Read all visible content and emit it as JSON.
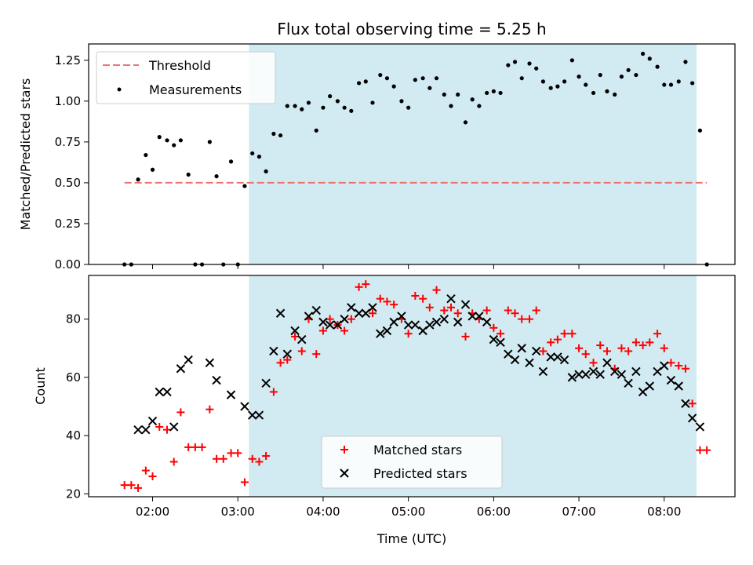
{
  "chart_data": [
    {
      "type": "scatter",
      "title": "Flux total observing time = 5.25 h",
      "xlabel": "",
      "ylabel": "Matched/Predicted stars",
      "ylim": [
        0,
        1.35
      ],
      "yticks": [
        "0.00",
        "0.25",
        "0.50",
        "0.75",
        "1.00",
        "1.25"
      ],
      "ytick_values": [
        0,
        0.25,
        0.5,
        0.75,
        1.0,
        1.25
      ],
      "xlim_hours": [
        1.25,
        8.83
      ],
      "shaded_range_hours": [
        3.13,
        8.38
      ],
      "shade_color": "#add8e6",
      "legend_position": "upper-left",
      "threshold": {
        "name": "Threshold",
        "value": 0.5,
        "x_range_hours": [
          1.67,
          8.5
        ],
        "color": "#f07070"
      },
      "series": [
        {
          "name": "Measurements",
          "color": "#000000",
          "marker": "dot",
          "points": [
            [
              1.67,
              0.0
            ],
            [
              1.75,
              0.0
            ],
            [
              1.83,
              0.52
            ],
            [
              1.92,
              0.67
            ],
            [
              2.0,
              0.58
            ],
            [
              2.08,
              0.78
            ],
            [
              2.17,
              0.76
            ],
            [
              2.25,
              0.73
            ],
            [
              2.33,
              0.76
            ],
            [
              2.42,
              0.55
            ],
            [
              2.5,
              0.0
            ],
            [
              2.58,
              0.0
            ],
            [
              2.67,
              0.75
            ],
            [
              2.75,
              0.54
            ],
            [
              2.83,
              0.0
            ],
            [
              2.92,
              0.63
            ],
            [
              3.0,
              0.0
            ],
            [
              3.08,
              0.48
            ],
            [
              3.17,
              0.68
            ],
            [
              3.25,
              0.66
            ],
            [
              3.33,
              0.57
            ],
            [
              3.42,
              0.8
            ],
            [
              3.5,
              0.79
            ],
            [
              3.58,
              0.97
            ],
            [
              3.67,
              0.97
            ],
            [
              3.75,
              0.95
            ],
            [
              3.83,
              0.99
            ],
            [
              3.92,
              0.82
            ],
            [
              4.0,
              0.96
            ],
            [
              4.08,
              1.03
            ],
            [
              4.17,
              1.0
            ],
            [
              4.25,
              0.96
            ],
            [
              4.33,
              0.94
            ],
            [
              4.42,
              1.11
            ],
            [
              4.5,
              1.12
            ],
            [
              4.58,
              0.99
            ],
            [
              4.67,
              1.16
            ],
            [
              4.75,
              1.14
            ],
            [
              4.83,
              1.09
            ],
            [
              4.92,
              1.0
            ],
            [
              5.0,
              0.96
            ],
            [
              5.08,
              1.13
            ],
            [
              5.17,
              1.14
            ],
            [
              5.25,
              1.08
            ],
            [
              5.33,
              1.14
            ],
            [
              5.42,
              1.04
            ],
            [
              5.5,
              0.97
            ],
            [
              5.58,
              1.04
            ],
            [
              5.67,
              0.87
            ],
            [
              5.75,
              1.01
            ],
            [
              5.83,
              0.97
            ],
            [
              5.92,
              1.05
            ],
            [
              6.0,
              1.06
            ],
            [
              6.08,
              1.05
            ],
            [
              6.17,
              1.22
            ],
            [
              6.25,
              1.24
            ],
            [
              6.33,
              1.14
            ],
            [
              6.42,
              1.23
            ],
            [
              6.5,
              1.2
            ],
            [
              6.58,
              1.12
            ],
            [
              6.67,
              1.08
            ],
            [
              6.75,
              1.09
            ],
            [
              6.83,
              1.12
            ],
            [
              6.92,
              1.25
            ],
            [
              7.0,
              1.15
            ],
            [
              7.08,
              1.1
            ],
            [
              7.17,
              1.05
            ],
            [
              7.25,
              1.16
            ],
            [
              7.33,
              1.06
            ],
            [
              7.42,
              1.04
            ],
            [
              7.5,
              1.15
            ],
            [
              7.58,
              1.19
            ],
            [
              7.67,
              1.16
            ],
            [
              7.75,
              1.29
            ],
            [
              7.83,
              1.26
            ],
            [
              7.92,
              1.21
            ],
            [
              8.0,
              1.1
            ],
            [
              8.08,
              1.1
            ],
            [
              8.17,
              1.12
            ],
            [
              8.25,
              1.24
            ],
            [
              8.33,
              1.11
            ],
            [
              8.42,
              0.82
            ],
            [
              8.5,
              0.0
            ]
          ]
        }
      ]
    },
    {
      "type": "scatter",
      "title": "",
      "xlabel": "Time (UTC)",
      "ylabel": "Count",
      "ylim": [
        19,
        95
      ],
      "yticks": [
        "20",
        "40",
        "60",
        "80"
      ],
      "ytick_values": [
        20,
        40,
        60,
        80
      ],
      "xlim_hours": [
        1.25,
        8.83
      ],
      "xticks": [
        "02:00",
        "03:00",
        "04:00",
        "05:00",
        "06:00",
        "07:00",
        "08:00"
      ],
      "xtick_values_hours": [
        2,
        3,
        4,
        5,
        6,
        7,
        8
      ],
      "shaded_range_hours": [
        3.13,
        8.38
      ],
      "shade_color": "#add8e6",
      "legend_position": "lower-center",
      "series": [
        {
          "name": "Matched stars",
          "color": "#ff0000",
          "marker": "plus",
          "points": [
            [
              1.67,
              23
            ],
            [
              1.75,
              23
            ],
            [
              1.83,
              22
            ],
            [
              1.92,
              28
            ],
            [
              2.0,
              26
            ],
            [
              2.08,
              43
            ],
            [
              2.17,
              42
            ],
            [
              2.25,
              31
            ],
            [
              2.33,
              48
            ],
            [
              2.42,
              36
            ],
            [
              2.5,
              36
            ],
            [
              2.58,
              36
            ],
            [
              2.67,
              49
            ],
            [
              2.75,
              32
            ],
            [
              2.83,
              32
            ],
            [
              2.92,
              34
            ],
            [
              3.0,
              34
            ],
            [
              3.08,
              24
            ],
            [
              3.17,
              32
            ],
            [
              3.25,
              31
            ],
            [
              3.33,
              33
            ],
            [
              3.42,
              55
            ],
            [
              3.5,
              65
            ],
            [
              3.58,
              66
            ],
            [
              3.67,
              74
            ],
            [
              3.75,
              69
            ],
            [
              3.83,
              80
            ],
            [
              3.92,
              68
            ],
            [
              4.0,
              76
            ],
            [
              4.08,
              80
            ],
            [
              4.17,
              78
            ],
            [
              4.25,
              76
            ],
            [
              4.33,
              80
            ],
            [
              4.42,
              91
            ],
            [
              4.5,
              92
            ],
            [
              4.58,
              82
            ],
            [
              4.67,
              87
            ],
            [
              4.75,
              86
            ],
            [
              4.83,
              85
            ],
            [
              4.92,
              80
            ],
            [
              5.0,
              75
            ],
            [
              5.08,
              88
            ],
            [
              5.17,
              87
            ],
            [
              5.25,
              84
            ],
            [
              5.33,
              90
            ],
            [
              5.42,
              83
            ],
            [
              5.5,
              84
            ],
            [
              5.58,
              82
            ],
            [
              5.67,
              74
            ],
            [
              5.75,
              82
            ],
            [
              5.83,
              80
            ],
            [
              5.92,
              83
            ],
            [
              6.0,
              77
            ],
            [
              6.08,
              75
            ],
            [
              6.17,
              83
            ],
            [
              6.25,
              82
            ],
            [
              6.33,
              80
            ],
            [
              6.42,
              80
            ],
            [
              6.5,
              83
            ],
            [
              6.58,
              69
            ],
            [
              6.67,
              72
            ],
            [
              6.75,
              73
            ],
            [
              6.83,
              75
            ],
            [
              6.92,
              75
            ],
            [
              7.0,
              70
            ],
            [
              7.08,
              68
            ],
            [
              7.17,
              65
            ],
            [
              7.25,
              71
            ],
            [
              7.33,
              69
            ],
            [
              7.42,
              63
            ],
            [
              7.5,
              70
            ],
            [
              7.58,
              69
            ],
            [
              7.67,
              72
            ],
            [
              7.75,
              71
            ],
            [
              7.83,
              72
            ],
            [
              7.92,
              75
            ],
            [
              8.0,
              70
            ],
            [
              8.08,
              65
            ],
            [
              8.17,
              64
            ],
            [
              8.25,
              63
            ],
            [
              8.33,
              51
            ],
            [
              8.42,
              35
            ],
            [
              8.5,
              35
            ]
          ]
        },
        {
          "name": "Predicted stars",
          "color": "#000000",
          "marker": "x",
          "points": [
            [
              1.83,
              42
            ],
            [
              1.92,
              42
            ],
            [
              2.0,
              45
            ],
            [
              2.08,
              55
            ],
            [
              2.17,
              55
            ],
            [
              2.25,
              43
            ],
            [
              2.33,
              63
            ],
            [
              2.42,
              66
            ],
            [
              2.67,
              65
            ],
            [
              2.75,
              59
            ],
            [
              2.92,
              54
            ],
            [
              3.08,
              50
            ],
            [
              3.17,
              47
            ],
            [
              3.25,
              47
            ],
            [
              3.33,
              58
            ],
            [
              3.42,
              69
            ],
            [
              3.5,
              82
            ],
            [
              3.58,
              68
            ],
            [
              3.67,
              76
            ],
            [
              3.75,
              73
            ],
            [
              3.83,
              81
            ],
            [
              3.92,
              83
            ],
            [
              4.0,
              79
            ],
            [
              4.08,
              78
            ],
            [
              4.17,
              78
            ],
            [
              4.25,
              80
            ],
            [
              4.33,
              84
            ],
            [
              4.42,
              82
            ],
            [
              4.5,
              82
            ],
            [
              4.58,
              84
            ],
            [
              4.67,
              75
            ],
            [
              4.75,
              76
            ],
            [
              4.83,
              79
            ],
            [
              4.92,
              81
            ],
            [
              5.0,
              78
            ],
            [
              5.08,
              78
            ],
            [
              5.17,
              76
            ],
            [
              5.25,
              78
            ],
            [
              5.33,
              79
            ],
            [
              5.42,
              80
            ],
            [
              5.5,
              87
            ],
            [
              5.58,
              79
            ],
            [
              5.67,
              85
            ],
            [
              5.75,
              81
            ],
            [
              5.83,
              81
            ],
            [
              5.92,
              79
            ],
            [
              6.0,
              73
            ],
            [
              6.08,
              72
            ],
            [
              6.17,
              68
            ],
            [
              6.25,
              66
            ],
            [
              6.33,
              70
            ],
            [
              6.42,
              65
            ],
            [
              6.5,
              69
            ],
            [
              6.58,
              62
            ],
            [
              6.67,
              67
            ],
            [
              6.75,
              67
            ],
            [
              6.83,
              66
            ],
            [
              6.92,
              60
            ],
            [
              7.0,
              61
            ],
            [
              7.08,
              61
            ],
            [
              7.17,
              62
            ],
            [
              7.25,
              61
            ],
            [
              7.33,
              65
            ],
            [
              7.42,
              62
            ],
            [
              7.5,
              61
            ],
            [
              7.58,
              58
            ],
            [
              7.67,
              62
            ],
            [
              7.75,
              55
            ],
            [
              7.83,
              57
            ],
            [
              7.92,
              62
            ],
            [
              8.0,
              64
            ],
            [
              8.08,
              59
            ],
            [
              8.17,
              57
            ],
            [
              8.25,
              51
            ],
            [
              8.33,
              46
            ],
            [
              8.42,
              43
            ]
          ]
        }
      ]
    }
  ]
}
